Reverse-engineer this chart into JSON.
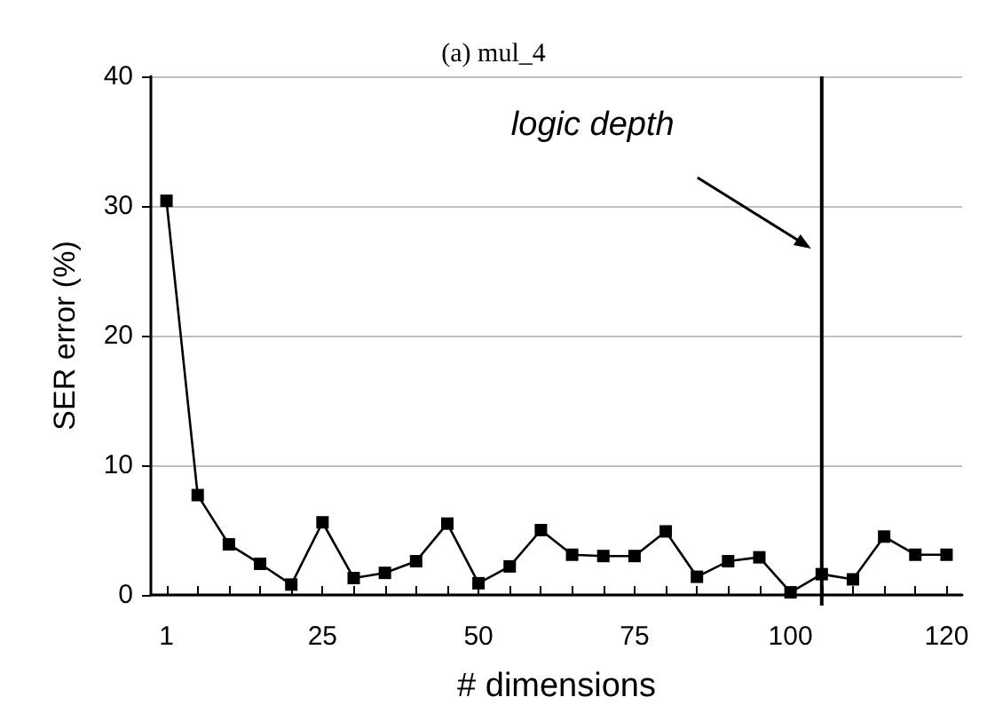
{
  "chart_data": {
    "type": "line",
    "title": "(a) mul_4",
    "xlabel": "# dimensions",
    "ylabel": "SER error (%)",
    "categories": [
      "1",
      null,
      null,
      null,
      null,
      "25",
      null,
      null,
      null,
      null,
      "50",
      null,
      null,
      null,
      null,
      "75",
      null,
      null,
      null,
      null,
      "100",
      null,
      null,
      null,
      null,
      "120"
    ],
    "series": [
      {
        "color": "#000000",
        "values": [
          30.4,
          7.7,
          3.9,
          2.4,
          0.8,
          5.6,
          1.3,
          1.7,
          2.6,
          5.5,
          0.9,
          2.2,
          5.0,
          3.1,
          3.0,
          3.0,
          4.9,
          1.4,
          2.6,
          2.9,
          0.2,
          1.6,
          1.2,
          4.5,
          3.1,
          3.1
        ]
      }
    ],
    "ylim": [
      0,
      40
    ],
    "yticks": [
      0,
      10,
      20,
      30,
      40
    ],
    "grid": "y",
    "marker": "square",
    "line_style": "solid",
    "annotations": [
      "logic depth"
    ]
  }
}
